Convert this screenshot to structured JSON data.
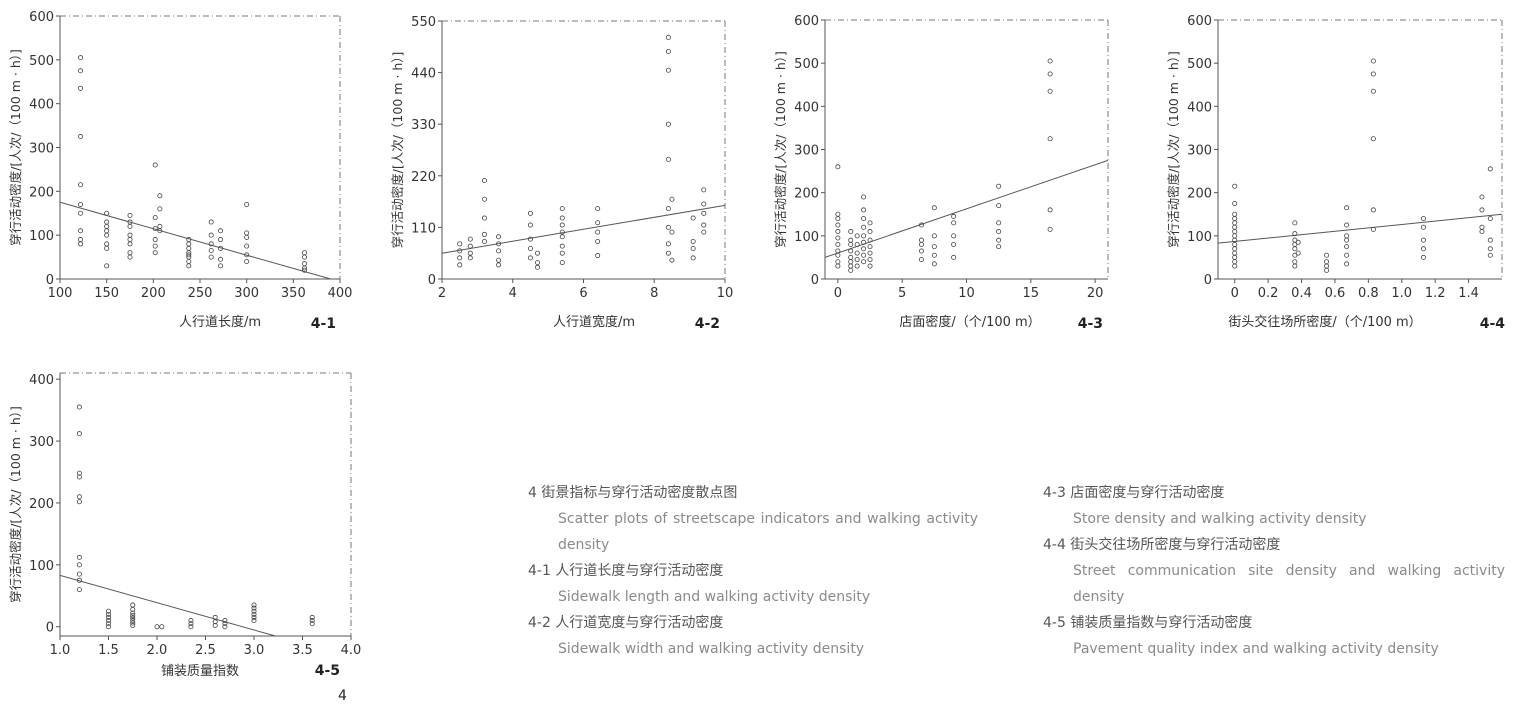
{
  "chart_data": [
    {
      "id": "4-1",
      "type": "scatter",
      "panel_label": "4-1",
      "xlabel": "人行道长度/m",
      "ylabel": "穿行活动密度/[人次/（100 m · h）]",
      "xlim": [
        100,
        400
      ],
      "ylim": [
        0,
        600
      ],
      "xticks": [
        100,
        150,
        200,
        250,
        300,
        350,
        400
      ],
      "yticks": [
        0,
        100,
        200,
        300,
        400,
        500,
        600
      ],
      "points": [
        [
          122,
          505
        ],
        [
          122,
          475
        ],
        [
          122,
          435
        ],
        [
          122,
          325
        ],
        [
          122,
          215
        ],
        [
          122,
          170
        ],
        [
          122,
          150
        ],
        [
          122,
          110
        ],
        [
          122,
          90
        ],
        [
          122,
          80
        ],
        [
          150,
          150
        ],
        [
          150,
          130
        ],
        [
          150,
          120
        ],
        [
          150,
          110
        ],
        [
          150,
          100
        ],
        [
          150,
          80
        ],
        [
          150,
          70
        ],
        [
          150,
          30
        ],
        [
          175,
          145
        ],
        [
          175,
          130
        ],
        [
          175,
          120
        ],
        [
          175,
          100
        ],
        [
          175,
          90
        ],
        [
          175,
          80
        ],
        [
          175,
          60
        ],
        [
          175,
          50
        ],
        [
          202,
          260
        ],
        [
          202,
          140
        ],
        [
          202,
          115
        ],
        [
          202,
          90
        ],
        [
          202,
          75
        ],
        [
          202,
          60
        ],
        [
          207,
          190
        ],
        [
          207,
          160
        ],
        [
          207,
          120
        ],
        [
          207,
          110
        ],
        [
          238,
          90
        ],
        [
          238,
          80
        ],
        [
          238,
          70
        ],
        [
          238,
          60
        ],
        [
          238,
          55
        ],
        [
          238,
          50
        ],
        [
          238,
          40
        ],
        [
          238,
          30
        ],
        [
          262,
          130
        ],
        [
          262,
          100
        ],
        [
          262,
          80
        ],
        [
          262,
          65
        ],
        [
          262,
          50
        ],
        [
          272,
          110
        ],
        [
          272,
          90
        ],
        [
          272,
          70
        ],
        [
          272,
          45
        ],
        [
          272,
          30
        ],
        [
          300,
          170
        ],
        [
          300,
          105
        ],
        [
          300,
          95
        ],
        [
          300,
          75
        ],
        [
          300,
          55
        ],
        [
          300,
          40
        ],
        [
          362,
          60
        ],
        [
          362,
          50
        ],
        [
          362,
          35
        ],
        [
          362,
          25
        ],
        [
          362,
          20
        ]
      ],
      "fit": [
        [
          100,
          175
        ],
        [
          390,
          0
        ]
      ]
    },
    {
      "id": "4-2",
      "type": "scatter",
      "panel_label": "4-2",
      "xlabel": "人行道宽度/m",
      "ylabel": "穿行活动密度/[人次/（100 m · h）]",
      "xlim": [
        2,
        10
      ],
      "ylim": [
        0,
        550
      ],
      "xticks": [
        2,
        4,
        6,
        8,
        10
      ],
      "yticks": [
        0,
        110,
        220,
        330,
        440,
        550
      ],
      "points": [
        [
          2.5,
          75
        ],
        [
          2.5,
          60
        ],
        [
          2.5,
          45
        ],
        [
          2.5,
          30
        ],
        [
          2.8,
          85
        ],
        [
          2.8,
          70
        ],
        [
          2.8,
          55
        ],
        [
          2.8,
          45
        ],
        [
          3.2,
          210
        ],
        [
          3.2,
          170
        ],
        [
          3.2,
          130
        ],
        [
          3.2,
          95
        ],
        [
          3.2,
          80
        ],
        [
          3.6,
          90
        ],
        [
          3.6,
          75
        ],
        [
          3.6,
          60
        ],
        [
          3.6,
          40
        ],
        [
          3.6,
          30
        ],
        [
          4.5,
          140
        ],
        [
          4.5,
          115
        ],
        [
          4.5,
          85
        ],
        [
          4.5,
          65
        ],
        [
          4.5,
          45
        ],
        [
          4.7,
          55
        ],
        [
          4.7,
          35
        ],
        [
          4.7,
          25
        ],
        [
          5.4,
          150
        ],
        [
          5.4,
          130
        ],
        [
          5.4,
          115
        ],
        [
          5.4,
          100
        ],
        [
          5.4,
          90
        ],
        [
          5.4,
          70
        ],
        [
          5.4,
          55
        ],
        [
          5.4,
          35
        ],
        [
          6.4,
          150
        ],
        [
          6.4,
          120
        ],
        [
          6.4,
          100
        ],
        [
          6.4,
          80
        ],
        [
          6.4,
          50
        ],
        [
          8.4,
          515
        ],
        [
          8.4,
          485
        ],
        [
          8.4,
          445
        ],
        [
          8.4,
          330
        ],
        [
          8.4,
          255
        ],
        [
          8.4,
          150
        ],
        [
          8.4,
          110
        ],
        [
          8.4,
          75
        ],
        [
          8.4,
          55
        ],
        [
          8.5,
          170
        ],
        [
          8.5,
          100
        ],
        [
          8.5,
          40
        ],
        [
          9.1,
          130
        ],
        [
          9.1,
          80
        ],
        [
          9.1,
          65
        ],
        [
          9.1,
          45
        ],
        [
          9.4,
          190
        ],
        [
          9.4,
          160
        ],
        [
          9.4,
          140
        ],
        [
          9.4,
          115
        ],
        [
          9.4,
          100
        ]
      ],
      "fit": [
        [
          2,
          55
        ],
        [
          10,
          157
        ]
      ]
    },
    {
      "id": "4-3",
      "type": "scatter",
      "panel_label": "4-3",
      "xlabel": "店面密度/（个/100 m）",
      "ylabel": "穿行活动密度/[人次/（100 m · h）]",
      "xlim": [
        -1,
        21
      ],
      "ylim": [
        0,
        600
      ],
      "xticks": [
        0,
        5,
        10,
        15,
        20
      ],
      "yticks": [
        0,
        100,
        200,
        300,
        400,
        500,
        600
      ],
      "points": [
        [
          0,
          260
        ],
        [
          0,
          150
        ],
        [
          0,
          140
        ],
        [
          0,
          125
        ],
        [
          0,
          110
        ],
        [
          0,
          95
        ],
        [
          0,
          80
        ],
        [
          0,
          65
        ],
        [
          0,
          55
        ],
        [
          0,
          40
        ],
        [
          0,
          30
        ],
        [
          1,
          110
        ],
        [
          1,
          90
        ],
        [
          1,
          80
        ],
        [
          1,
          65
        ],
        [
          1,
          50
        ],
        [
          1,
          40
        ],
        [
          1,
          30
        ],
        [
          1,
          20
        ],
        [
          1.5,
          100
        ],
        [
          1.5,
          80
        ],
        [
          1.5,
          60
        ],
        [
          1.5,
          45
        ],
        [
          1.5,
          30
        ],
        [
          2,
          190
        ],
        [
          2,
          160
        ],
        [
          2,
          140
        ],
        [
          2,
          120
        ],
        [
          2,
          100
        ],
        [
          2,
          85
        ],
        [
          2,
          70
        ],
        [
          2,
          55
        ],
        [
          2,
          40
        ],
        [
          2.5,
          130
        ],
        [
          2.5,
          110
        ],
        [
          2.5,
          90
        ],
        [
          2.5,
          75
        ],
        [
          2.5,
          60
        ],
        [
          2.5,
          45
        ],
        [
          2.5,
          30
        ],
        [
          6.5,
          125
        ],
        [
          6.5,
          90
        ],
        [
          6.5,
          80
        ],
        [
          6.5,
          65
        ],
        [
          6.5,
          45
        ],
        [
          7.5,
          165
        ],
        [
          7.5,
          100
        ],
        [
          7.5,
          75
        ],
        [
          7.5,
          55
        ],
        [
          7.5,
          35
        ],
        [
          9,
          145
        ],
        [
          9,
          130
        ],
        [
          9,
          100
        ],
        [
          9,
          80
        ],
        [
          9,
          50
        ],
        [
          12.5,
          215
        ],
        [
          12.5,
          170
        ],
        [
          12.5,
          130
        ],
        [
          12.5,
          110
        ],
        [
          12.5,
          90
        ],
        [
          12.5,
          75
        ],
        [
          16.5,
          505
        ],
        [
          16.5,
          475
        ],
        [
          16.5,
          435
        ],
        [
          16.5,
          325
        ],
        [
          16.5,
          160
        ],
        [
          16.5,
          115
        ]
      ],
      "fit": [
        [
          -1,
          50
        ],
        [
          21,
          275
        ]
      ]
    },
    {
      "id": "4-4",
      "type": "scatter",
      "panel_label": "4-4",
      "xlabel": "街头交往场所密度/（个/100 m）",
      "ylabel": "穿行活动密度/[人次/（100 m · h）]",
      "xlim": [
        -0.1,
        1.6
      ],
      "ylim": [
        0,
        600
      ],
      "xticks": [
        0,
        0.2,
        0.4,
        0.6,
        0.8,
        1.0,
        1.2,
        1.4
      ],
      "xtick_labels": [
        "0",
        "0.2",
        "0.4",
        "0.6",
        "0.8",
        "1.0",
        "1.2",
        "1.4"
      ],
      "yticks": [
        0,
        100,
        200,
        300,
        400,
        500,
        600
      ],
      "points": [
        [
          0,
          215
        ],
        [
          0,
          175
        ],
        [
          0,
          150
        ],
        [
          0,
          140
        ],
        [
          0,
          130
        ],
        [
          0,
          120
        ],
        [
          0,
          110
        ],
        [
          0,
          100
        ],
        [
          0,
          90
        ],
        [
          0,
          80
        ],
        [
          0,
          70
        ],
        [
          0,
          60
        ],
        [
          0,
          50
        ],
        [
          0,
          40
        ],
        [
          0,
          30
        ],
        [
          0.36,
          130
        ],
        [
          0.36,
          105
        ],
        [
          0.36,
          90
        ],
        [
          0.36,
          80
        ],
        [
          0.36,
          70
        ],
        [
          0.36,
          55
        ],
        [
          0.36,
          40
        ],
        [
          0.36,
          30
        ],
        [
          0.38,
          85
        ],
        [
          0.38,
          60
        ],
        [
          0.55,
          55
        ],
        [
          0.55,
          40
        ],
        [
          0.55,
          30
        ],
        [
          0.55,
          20
        ],
        [
          0.67,
          165
        ],
        [
          0.67,
          125
        ],
        [
          0.67,
          100
        ],
        [
          0.67,
          90
        ],
        [
          0.67,
          75
        ],
        [
          0.67,
          55
        ],
        [
          0.67,
          35
        ],
        [
          0.83,
          505
        ],
        [
          0.83,
          475
        ],
        [
          0.83,
          435
        ],
        [
          0.83,
          325
        ],
        [
          0.83,
          160
        ],
        [
          0.83,
          115
        ],
        [
          1.13,
          140
        ],
        [
          1.13,
          120
        ],
        [
          1.13,
          90
        ],
        [
          1.13,
          70
        ],
        [
          1.13,
          50
        ],
        [
          1.48,
          190
        ],
        [
          1.48,
          160
        ],
        [
          1.48,
          120
        ],
        [
          1.48,
          110
        ],
        [
          1.53,
          255
        ],
        [
          1.53,
          140
        ],
        [
          1.53,
          90
        ],
        [
          1.53,
          70
        ],
        [
          1.53,
          55
        ]
      ],
      "fit": [
        [
          -0.1,
          83
        ],
        [
          1.6,
          150
        ]
      ]
    },
    {
      "id": "4-5",
      "type": "scatter",
      "panel_label": "4-5",
      "xlabel": "铺装质量指数",
      "ylabel": "穿行活动密度/[人次/（100 m · h）]",
      "xlim": [
        1.0,
        4.0
      ],
      "ylim": [
        -15,
        410
      ],
      "xticks": [
        1.0,
        1.5,
        2.0,
        2.5,
        3.0,
        3.5,
        4.0
      ],
      "xtick_labels": [
        "1.0",
        "1.5",
        "2.0",
        "2.5",
        "3.0",
        "3.5",
        "4.0"
      ],
      "yticks": [
        0,
        100,
        200,
        300,
        400
      ],
      "points": [
        [
          1.2,
          355
        ],
        [
          1.2,
          312
        ],
        [
          1.2,
          248
        ],
        [
          1.2,
          242
        ],
        [
          1.2,
          210
        ],
        [
          1.2,
          202
        ],
        [
          1.2,
          112
        ],
        [
          1.2,
          100
        ],
        [
          1.2,
          85
        ],
        [
          1.2,
          75
        ],
        [
          1.2,
          60
        ],
        [
          1.5,
          25
        ],
        [
          1.5,
          20
        ],
        [
          1.5,
          15
        ],
        [
          1.5,
          10
        ],
        [
          1.5,
          5
        ],
        [
          1.5,
          0
        ],
        [
          1.75,
          35
        ],
        [
          1.75,
          28
        ],
        [
          1.75,
          22
        ],
        [
          1.75,
          18
        ],
        [
          1.75,
          14
        ],
        [
          1.75,
          10
        ],
        [
          1.75,
          6
        ],
        [
          1.75,
          2
        ],
        [
          2.0,
          0
        ],
        [
          2.05,
          0
        ],
        [
          2.35,
          10
        ],
        [
          2.35,
          5
        ],
        [
          2.35,
          0
        ],
        [
          2.6,
          15
        ],
        [
          2.6,
          8
        ],
        [
          2.6,
          2
        ],
        [
          2.7,
          10
        ],
        [
          2.7,
          5
        ],
        [
          2.7,
          0
        ],
        [
          3.0,
          35
        ],
        [
          3.0,
          30
        ],
        [
          3.0,
          25
        ],
        [
          3.0,
          20
        ],
        [
          3.0,
          15
        ],
        [
          3.0,
          10
        ],
        [
          3.6,
          15
        ],
        [
          3.6,
          10
        ],
        [
          3.6,
          5
        ]
      ],
      "fit": [
        [
          1.0,
          83
        ],
        [
          3.22,
          -15
        ]
      ]
    }
  ],
  "caption": {
    "left": [
      {
        "cn": "4 街景指标与穿行活动密度散点图",
        "en": "Scatter plots of streetscape indicators and walking activity density"
      },
      {
        "cn": "4-1 人行道长度与穿行活动密度",
        "en": "Sidewalk length and walking activity density"
      },
      {
        "cn": "4-2 人行道宽度与穿行活动密度",
        "en": "Sidewalk width and walking activity density"
      }
    ],
    "right": [
      {
        "cn": "4-3 店面密度与穿行活动密度",
        "en": "Store density and walking activity density"
      },
      {
        "cn": "4-4 街头交往场所密度与穿行活动密度",
        "en": "Street communication site density and walking activity density"
      },
      {
        "cn": "4-5 铺装质量指数与穿行活动密度",
        "en": "Pavement quality index and walking activity density"
      }
    ]
  },
  "figure_number": "4"
}
